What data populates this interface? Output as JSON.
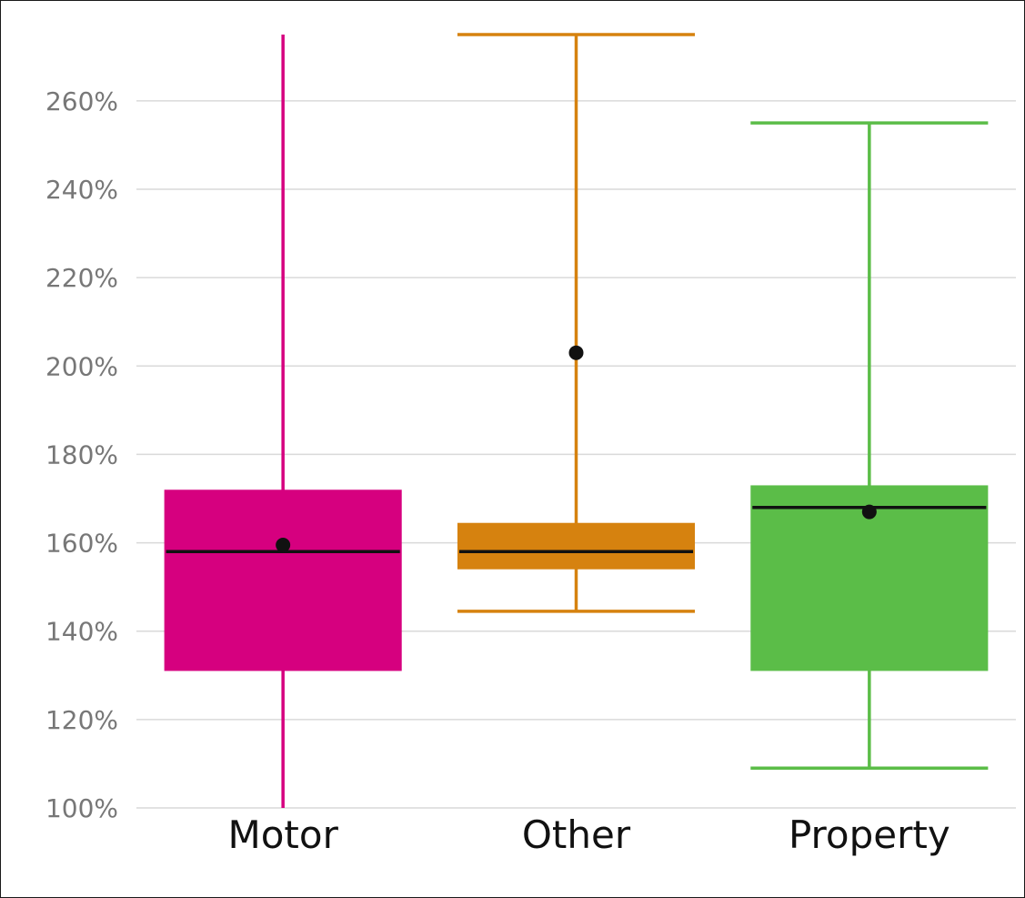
{
  "chart_data": {
    "type": "boxplot",
    "title": "",
    "xlabel": "",
    "ylabel": "",
    "ylim": [
      100,
      275
    ],
    "y_ticks": [
      {
        "value": 100,
        "label": "100%"
      },
      {
        "value": 120,
        "label": "120%"
      },
      {
        "value": 140,
        "label": "140%"
      },
      {
        "value": 160,
        "label": "160%"
      },
      {
        "value": 180,
        "label": "180%"
      },
      {
        "value": 200,
        "label": "200%"
      },
      {
        "value": 220,
        "label": "220%"
      },
      {
        "value": 240,
        "label": "240%"
      },
      {
        "value": 260,
        "label": "260%"
      }
    ],
    "grid": true,
    "categories": [
      "Motor",
      "Other",
      "Property"
    ],
    "boxes": [
      {
        "category": "Motor",
        "color": "#d6007f",
        "whisker_low": 100,
        "whisker_high": 275,
        "q1": 131,
        "q3": 172,
        "median": 158,
        "mean": 159.5,
        "caps": false
      },
      {
        "category": "Other",
        "color": "#d6820f",
        "whisker_low": 144.5,
        "whisker_high": 275,
        "q1": 154,
        "q3": 164.5,
        "median": 158,
        "mean": 203,
        "caps": true
      },
      {
        "category": "Property",
        "color": "#5bbd48",
        "whisker_low": 109,
        "whisker_high": 255,
        "q1": 131,
        "q3": 173,
        "median": 168,
        "mean": 167,
        "caps": true
      }
    ]
  }
}
